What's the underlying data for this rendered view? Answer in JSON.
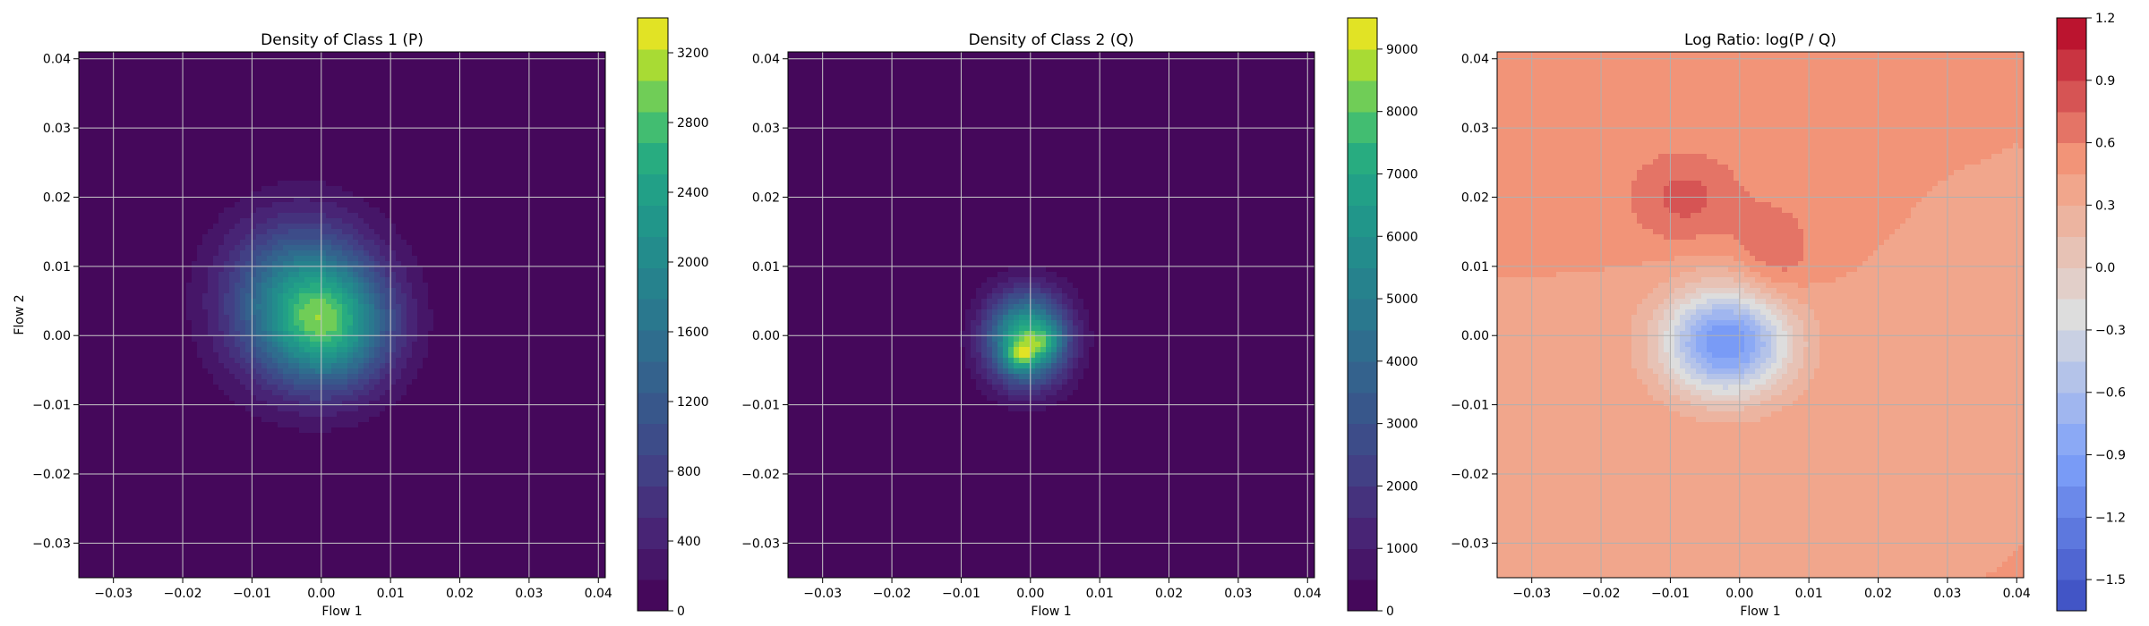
{
  "chart_data": [
    {
      "type": "heatmap",
      "title": "Density of Class 1 (P)",
      "xlabel": "Flow 1",
      "ylabel": "Flow 2",
      "xlim": [
        -0.035,
        0.041
      ],
      "ylim": [
        -0.035,
        0.041
      ],
      "xticks": [
        "-0.03",
        "-0.02",
        "-0.01",
        "0.00",
        "0.01",
        "0.02",
        "0.03",
        "0.04"
      ],
      "yticks": [
        "-0.03",
        "-0.02",
        "-0.01",
        "0.00",
        "0.01",
        "0.02",
        "0.03",
        "0.04"
      ],
      "grid": true,
      "colormap": "viridis",
      "colorbar": {
        "min": 0,
        "max": 3400,
        "ticks": [
          "0",
          "400",
          "800",
          "1200",
          "1600",
          "2000",
          "2400",
          "2800",
          "3200"
        ]
      },
      "peaks": [
        {
          "x": -0.003,
          "y": 0.005,
          "value": 1900,
          "sx": 0.0075,
          "sy": 0.008
        },
        {
          "x": 0.002,
          "y": 0.001,
          "value": 1500,
          "sx": 0.006,
          "sy": 0.006
        }
      ]
    },
    {
      "type": "heatmap",
      "title": "Density of Class 2 (Q)",
      "xlabel": "Flow 1",
      "ylabel": "",
      "xlim": [
        -0.035,
        0.041
      ],
      "ylim": [
        -0.035,
        0.041
      ],
      "xticks": [
        "-0.03",
        "-0.02",
        "-0.01",
        "0.00",
        "0.01",
        "0.02",
        "0.03",
        "0.04"
      ],
      "yticks": [
        "-0.03",
        "-0.02",
        "-0.01",
        "0.00",
        "0.01",
        "0.02",
        "0.03",
        "0.04"
      ],
      "grid": true,
      "colormap": "viridis",
      "colorbar": {
        "min": 0,
        "max": 9500,
        "ticks": [
          "0",
          "1000",
          "2000",
          "3000",
          "4000",
          "5000",
          "6000",
          "7000",
          "8000",
          "9000"
        ]
      },
      "peaks": [
        {
          "x": -0.0005,
          "y": -0.0005,
          "value": 7800,
          "sx": 0.004,
          "sy": 0.0045
        },
        {
          "x": -0.0015,
          "y": -0.003,
          "value": 2600,
          "sx": 0.0015,
          "sy": 0.0015
        },
        {
          "x": 0.0025,
          "y": -0.001,
          "value": 1800,
          "sx": 0.0015,
          "sy": 0.0015
        }
      ]
    },
    {
      "type": "heatmap",
      "title": "Log Ratio: log(P / Q)",
      "xlabel": "Flow 1",
      "ylabel": "",
      "xlim": [
        -0.035,
        0.041
      ],
      "ylim": [
        -0.035,
        0.041
      ],
      "xticks": [
        "-0.03",
        "-0.02",
        "-0.01",
        "0.00",
        "0.01",
        "0.02",
        "0.03",
        "0.04"
      ],
      "yticks": [
        "-0.03",
        "-0.02",
        "-0.01",
        "0.00",
        "0.01",
        "0.02",
        "0.03",
        "0.04"
      ],
      "grid": true,
      "colormap": "coolwarm",
      "colorbar": {
        "min": -1.65,
        "max": 1.2,
        "ticks": [
          "1.2",
          "0.9",
          "0.6",
          "0.3",
          "0.0",
          "−0.3",
          "−0.6",
          "−0.9",
          "−1.2",
          "−1.5"
        ]
      },
      "background": 0.45,
      "peaks": [
        {
          "x": -0.002,
          "y": -0.001,
          "value": -1.5,
          "sx": 0.0065,
          "sy": 0.0055
        },
        {
          "x": -0.008,
          "y": 0.02,
          "value": 0.35,
          "sx": 0.006,
          "sy": 0.005
        },
        {
          "x": 0.005,
          "y": 0.012,
          "value": 0.3,
          "sx": 0.004,
          "sy": 0.005
        }
      ]
    }
  ]
}
